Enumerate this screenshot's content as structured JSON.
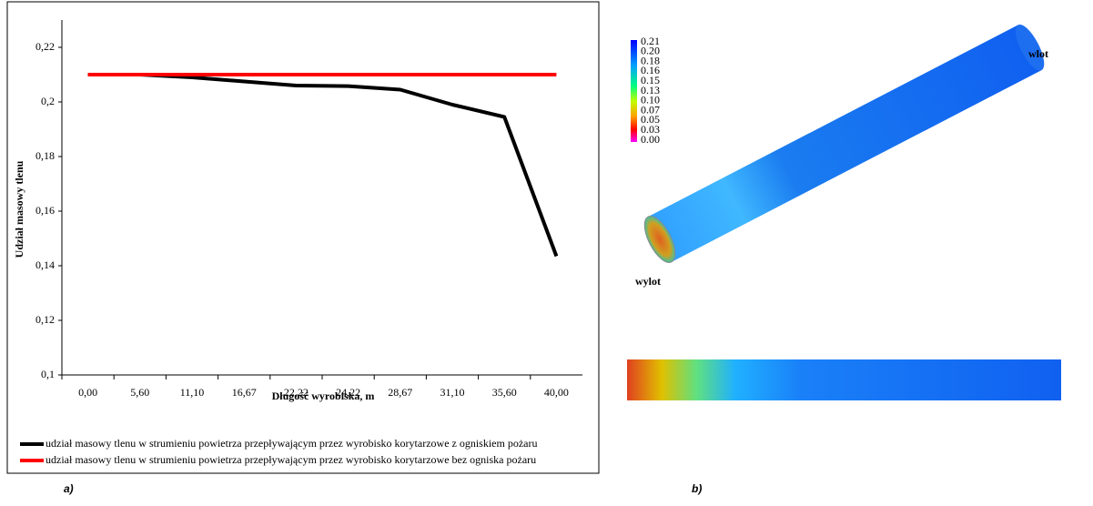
{
  "chart_data": {
    "type": "line",
    "categories": [
      "0,00",
      "5,60",
      "11,10",
      "16,67",
      "22,22",
      "24,22",
      "28,67",
      "31,10",
      "35,60",
      "40,00"
    ],
    "series": [
      {
        "name": "udział masowy tlenu w strumieniu powietrza przepływającym przez wyrobisko korytarzowe z ogniskiem pożaru",
        "color": "#000000",
        "values": [
          0.21,
          0.21,
          0.209,
          0.2075,
          0.206,
          0.2058,
          0.2045,
          0.199,
          0.1945,
          0.1435
        ]
      },
      {
        "name": "udział masowy tlenu w strumieniu powietrza przepływającym przez wyrobisko korytarzowe bez ogniska pożaru",
        "color": "#ff0000",
        "values": [
          0.21,
          0.21,
          0.21,
          0.21,
          0.21,
          0.21,
          0.21,
          0.21,
          0.21,
          0.21
        ]
      }
    ],
    "x_label": "Długość wyrobiska, m",
    "y_label": "Udział masowy tlenu",
    "ylim": [
      0.1,
      0.23
    ],
    "yticks": [
      {
        "value": 0.1,
        "label": "0,1"
      },
      {
        "value": 0.12,
        "label": "0,12"
      },
      {
        "value": 0.14,
        "label": "0,14"
      },
      {
        "value": 0.16,
        "label": "0,16"
      },
      {
        "value": 0.18,
        "label": "0,18"
      },
      {
        "value": 0.2,
        "label": "0,2"
      },
      {
        "value": 0.22,
        "label": "0,22"
      }
    ],
    "grid": false
  },
  "figure": {
    "panel_a": "a)",
    "panel_b": "b)",
    "inlet": "wlot",
    "outlet": "wylot",
    "colorbar_labels": [
      "0.21",
      "0.20",
      "0.18",
      "0.16",
      "0.15",
      "0.13",
      "0.10",
      "0.07",
      "0.05",
      "0.03",
      "0.00"
    ]
  }
}
